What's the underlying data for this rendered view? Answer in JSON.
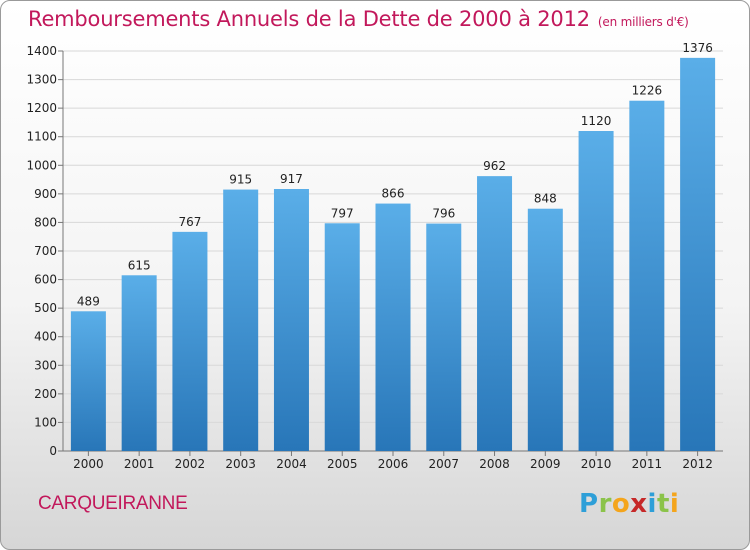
{
  "header": {
    "title": "Remboursements Annuels de la Dette de 2000 à 2012",
    "subtitle": "(en milliers d'€)"
  },
  "footer": {
    "commune": "CARQUEIRANNE",
    "logo_letters": [
      "P",
      "r",
      "o",
      "x",
      "i",
      "t",
      "i"
    ],
    "logo_colors": [
      "#2e9fd8",
      "#8bc34a",
      "#f4a51c",
      "#c62828",
      "#2e9fd8",
      "#8bc34a",
      "#f4a51c"
    ]
  },
  "chart_data": {
    "type": "bar",
    "title": "Remboursements Annuels de la Dette de 2000 à 2012",
    "subtitle": "(en milliers d'€)",
    "categories": [
      "2000",
      "2001",
      "2002",
      "2003",
      "2004",
      "2005",
      "2006",
      "2007",
      "2008",
      "2009",
      "2010",
      "2011",
      "2012"
    ],
    "values": [
      489,
      615,
      767,
      915,
      917,
      797,
      866,
      796,
      962,
      848,
      1120,
      1226,
      1376
    ],
    "xlabel": "",
    "ylabel": "",
    "ylim": [
      0,
      1400
    ],
    "yticks": [
      0,
      100,
      200,
      300,
      400,
      500,
      600,
      700,
      800,
      900,
      1000,
      1100,
      1200,
      1300,
      1400
    ],
    "grid": true,
    "bar_color_top": "#5aaee8",
    "bar_color_bottom": "#2876b8",
    "data_labels": true
  }
}
